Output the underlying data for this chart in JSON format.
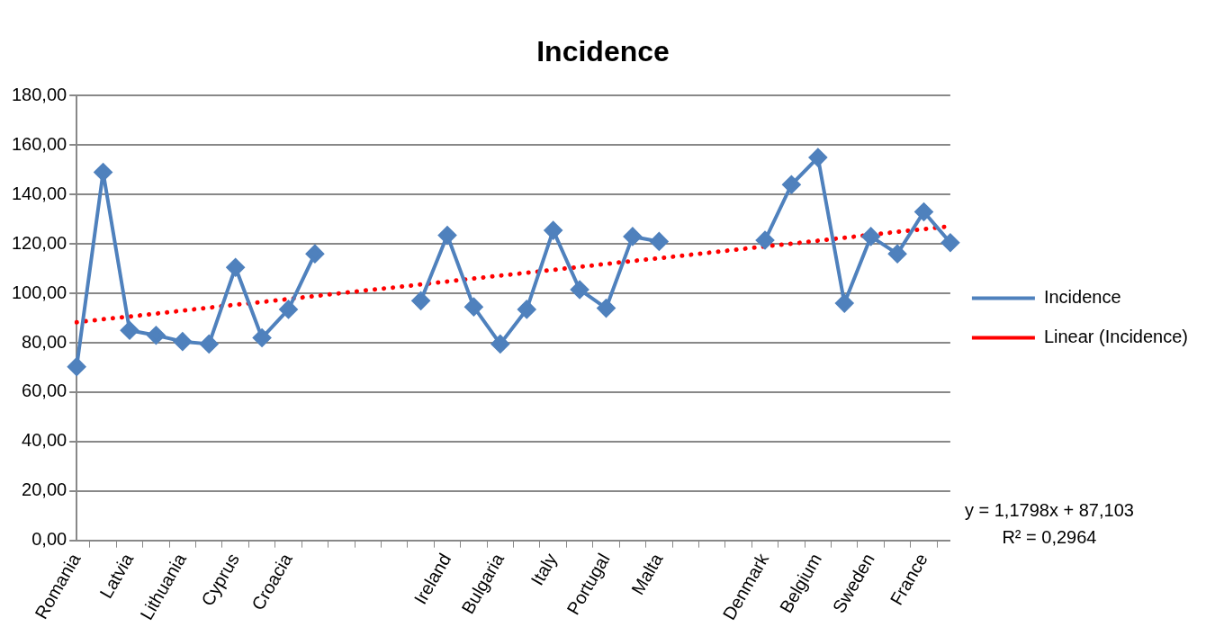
{
  "chart_data": {
    "type": "line",
    "title": "Incidence",
    "categories": [
      "Romania",
      null,
      "Latvia",
      null,
      "Lithuania",
      null,
      "Cyprus",
      null,
      "Croacia",
      null,
      null,
      null,
      null,
      null,
      "Ireland",
      null,
      "Bulgaria",
      null,
      "Italy",
      null,
      "Portugal",
      null,
      "Malta",
      null,
      null,
      null,
      "Denmark",
      null,
      "Belgium",
      null,
      "Sweden",
      null,
      "France",
      null
    ],
    "series": [
      {
        "name": "Incidence",
        "color": "#4f81bd",
        "values": [
          70.3,
          149,
          85,
          83,
          80.5,
          79.5,
          110.5,
          82,
          93.5,
          116,
          null,
          null,
          null,
          97,
          123.5,
          94.5,
          79.5,
          93.5,
          125.5,
          101.5,
          94,
          123,
          121,
          null,
          null,
          null,
          121.5,
          144,
          155,
          96,
          123,
          116,
          133,
          120.5
        ]
      },
      {
        "name": "Linear (Incidence)",
        "type": "line",
        "color": "#ff0000",
        "line_style": "dotted",
        "marker": "none",
        "values": [
          88.3,
          89.5,
          90.6,
          91.8,
          93,
          94.2,
          95.4,
          96.5,
          97.7,
          98.9,
          100.1,
          101.3,
          102.4,
          103.6,
          104.8,
          106,
          107.2,
          108.3,
          109.5,
          110.7,
          111.9,
          113.1,
          114.2,
          115.4,
          116.6,
          117.8,
          119,
          120.1,
          121.3,
          122.5,
          123.7,
          124.9,
          126,
          127.2
        ]
      }
    ],
    "ylim": [
      0,
      180
    ],
    "yticks": [
      {
        "value": 0,
        "label": "0,00"
      },
      {
        "value": 20,
        "label": "20,00"
      },
      {
        "value": 40,
        "label": "40,00"
      },
      {
        "value": 60,
        "label": "60,00"
      },
      {
        "value": 80,
        "label": "80,00"
      },
      {
        "value": 100,
        "label": "100,00"
      },
      {
        "value": 120,
        "label": "120,00"
      },
      {
        "value": 140,
        "label": "140,00"
      },
      {
        "value": 160,
        "label": "160,00"
      },
      {
        "value": 180,
        "label": "180,00"
      }
    ],
    "grid": "y",
    "legend": "right",
    "marker": "diamond",
    "line_style": "solid",
    "annotations": [
      "y = 1,1798x + 87,103",
      "R² = 0,2964"
    ]
  }
}
